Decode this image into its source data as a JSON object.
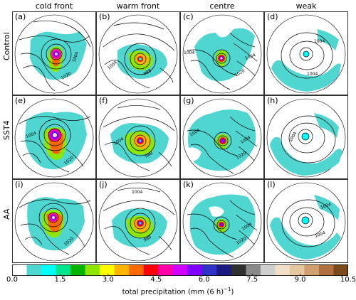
{
  "columns": [
    "cold front",
    "warm front",
    "centre",
    "weak"
  ],
  "rows": [
    "Control",
    "SST4",
    "AA"
  ],
  "panel_labels": [
    "(a)",
    "(b)",
    "(c)",
    "(d)",
    "(e)",
    "(f)",
    "(g)",
    "(h)",
    "(i)",
    "(j)",
    "(k)",
    "(l)"
  ],
  "isobar_labels": [
    "1004",
    "1020",
    "988"
  ],
  "colorbar": {
    "ticks": [
      "0.0",
      "1.5",
      "3.0",
      "4.5",
      "6.0",
      "7.5",
      "9.0",
      "10.5"
    ],
    "min": 0.0,
    "max": 10.5,
    "step": 0.5,
    "label": "total precipitation (mm (6 h)",
    "label_sup": "−1",
    "label_tail": ")",
    "colors": [
      "#ffffff",
      "#4fd6d0",
      "#00ffff",
      "#00e48e",
      "#00b400",
      "#8ce600",
      "#ffff00",
      "#ffb400",
      "#ff6a00",
      "#ff0000",
      "#ff00a8",
      "#d000ff",
      "#8000ff",
      "#3030c8",
      "#1a1a80",
      "#303030",
      "#8a8a8a",
      "#cfcfcf",
      "#f0e0c8",
      "#e6c8a0",
      "#d2a070",
      "#b07040",
      "#7a4a1a"
    ]
  }
}
